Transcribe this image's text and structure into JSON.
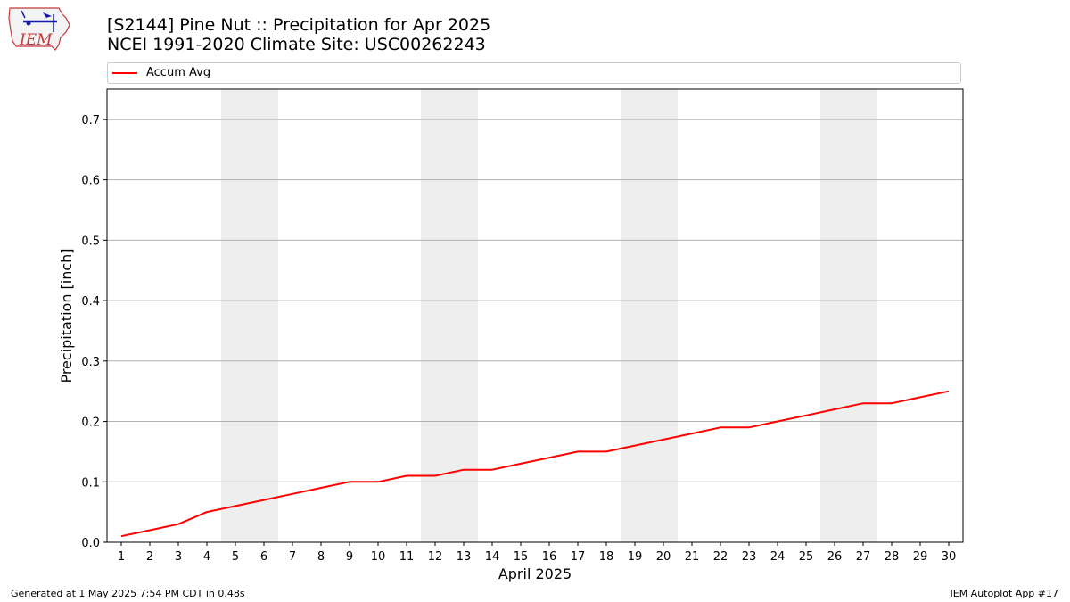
{
  "header": {
    "title_line1": "[S2144] Pine Nut :: Precipitation for Apr 2025",
    "title_line2": "NCEI 1991-2020 Climate Site: USC00262243"
  },
  "logo": {
    "text": "IEM"
  },
  "footer": {
    "generated": "Generated at 1 May 2025 7:54 PM CDT in 0.48s",
    "app": "IEM Autoplot App #17"
  },
  "chart_data": {
    "type": "line",
    "xlabel": "April 2025",
    "ylabel": "Precipitation [inch]",
    "xlim": [
      0.5,
      30.5
    ],
    "ylim": [
      0,
      0.75
    ],
    "yticks": [
      0.0,
      0.1,
      0.2,
      0.3,
      0.4,
      0.5,
      0.6,
      0.7
    ],
    "ytick_labels": [
      "0.0",
      "0.1",
      "0.2",
      "0.3",
      "0.4",
      "0.5",
      "0.6",
      "0.7"
    ],
    "x": [
      1,
      2,
      3,
      4,
      5,
      6,
      7,
      8,
      9,
      10,
      11,
      12,
      13,
      14,
      15,
      16,
      17,
      18,
      19,
      20,
      21,
      22,
      23,
      24,
      25,
      26,
      27,
      28,
      29,
      30
    ],
    "grid": "horizontal",
    "weekend_shading": [
      [
        5,
        6
      ],
      [
        12,
        13
      ],
      [
        19,
        20
      ],
      [
        26,
        27
      ]
    ],
    "shade_color": "#eeeeee",
    "legend_position": "top",
    "series": [
      {
        "name": "Accum Avg",
        "color": "#ff0000",
        "values": [
          0.01,
          0.02,
          0.03,
          0.05,
          0.06,
          0.07,
          0.08,
          0.09,
          0.1,
          0.1,
          0.11,
          0.11,
          0.12,
          0.12,
          0.13,
          0.14,
          0.15,
          0.15,
          0.16,
          0.17,
          0.18,
          0.19,
          0.19,
          0.2,
          0.21,
          0.22,
          0.23,
          0.23,
          0.24,
          0.25
        ]
      }
    ]
  }
}
